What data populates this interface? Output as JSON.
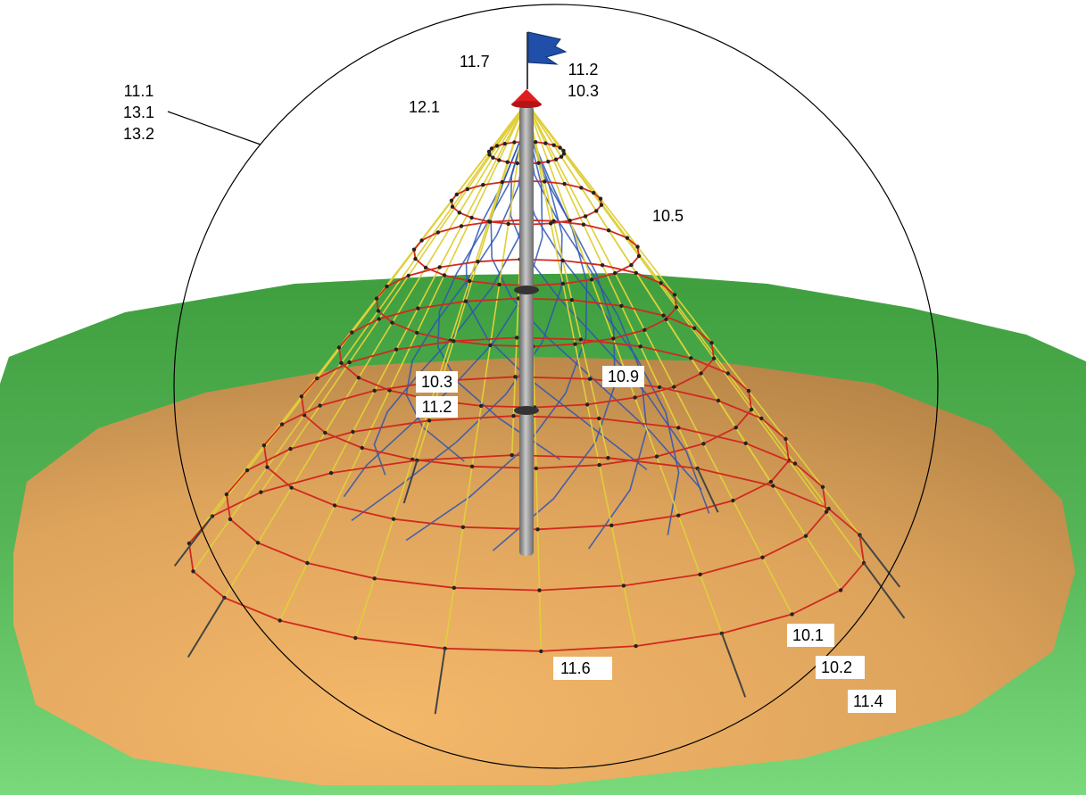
{
  "colors": {
    "grass": "#5cc05c",
    "grass_edge": "#4aa94a",
    "sand": "#e8a95f",
    "sand_dark": "#c98a45",
    "rope_yellow": "#e0cf3a",
    "rope_red": "#d02a1e",
    "rope_blue": "#2c55b5",
    "mast": "#8e8e8e",
    "cap": "#e01e1e",
    "flag": "#1f4fa8",
    "outline": "#000000"
  },
  "labels": {
    "top_left_stack": [
      "11.1",
      "13.1",
      "13.2"
    ],
    "flag_left": "11.7",
    "flag_right_stack": [
      "11.2",
      "10.3"
    ],
    "upper_left": "12.1",
    "right_mid": "10.5",
    "center_stack": [
      "10.3",
      "11.2"
    ],
    "center_right": "10.9",
    "bottom_center": "11.6",
    "bottom_right_1": "10.1",
    "bottom_right_2": "10.2",
    "bottom_right_3": "11.4"
  },
  "icons": {
    "flag": "flag-icon",
    "cap": "cone-cap-icon"
  }
}
